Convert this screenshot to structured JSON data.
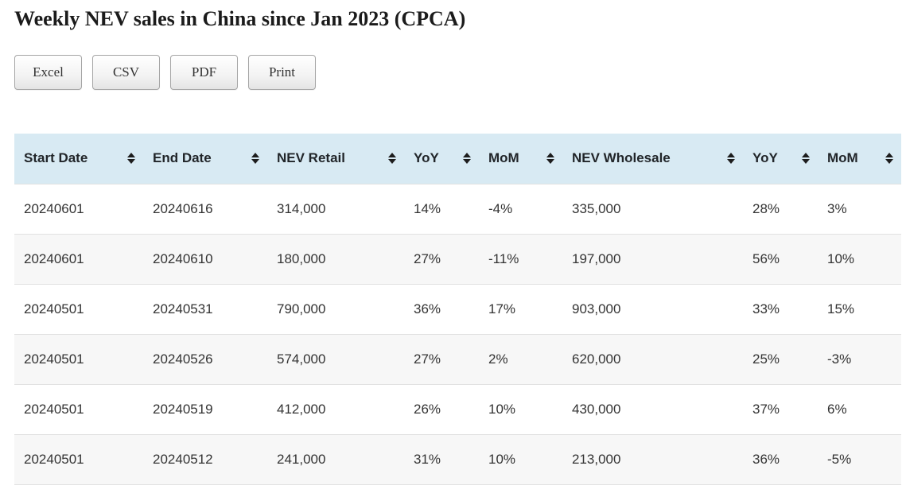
{
  "title": "Weekly NEV sales in China since Jan 2023 (CPCA)",
  "toolbar": {
    "buttons": [
      {
        "id": "excel",
        "label": "Excel"
      },
      {
        "id": "csv",
        "label": "CSV"
      },
      {
        "id": "pdf",
        "label": "PDF"
      },
      {
        "id": "print",
        "label": "Print"
      }
    ]
  },
  "table": {
    "columns": [
      {
        "id": "start-date",
        "label": "Start Date",
        "sortable": true
      },
      {
        "id": "end-date",
        "label": "End Date",
        "sortable": true
      },
      {
        "id": "nev-retail",
        "label": "NEV Retail",
        "sortable": true
      },
      {
        "id": "retail-yoy",
        "label": "YoY",
        "sortable": true
      },
      {
        "id": "retail-mom",
        "label": "MoM",
        "sortable": true
      },
      {
        "id": "nev-wholesale",
        "label": "NEV Wholesale",
        "sortable": true
      },
      {
        "id": "wholesale-yoy",
        "label": "YoY",
        "sortable": true
      },
      {
        "id": "wholesale-mom",
        "label": "MoM",
        "sortable": true
      }
    ],
    "rows": [
      [
        "20240601",
        "20240616",
        "314,000",
        "14%",
        "-4%",
        "335,000",
        "28%",
        "3%"
      ],
      [
        "20240601",
        "20240610",
        "180,000",
        "27%",
        "-11%",
        "197,000",
        "56%",
        "10%"
      ],
      [
        "20240501",
        "20240531",
        "790,000",
        "36%",
        "17%",
        "903,000",
        "33%",
        "15%"
      ],
      [
        "20240501",
        "20240526",
        "574,000",
        "27%",
        "2%",
        "620,000",
        "25%",
        "-3%"
      ],
      [
        "20240501",
        "20240519",
        "412,000",
        "26%",
        "10%",
        "430,000",
        "37%",
        "6%"
      ],
      [
        "20240501",
        "20240512",
        "241,000",
        "31%",
        "10%",
        "213,000",
        "36%",
        "-5%"
      ]
    ]
  },
  "colors": {
    "header_bg": "#d8eaf3",
    "row_alt_bg": "#f7f7f7",
    "row_border": "#e1e1e1",
    "header_text": "#212529",
    "body_text": "#333333"
  }
}
